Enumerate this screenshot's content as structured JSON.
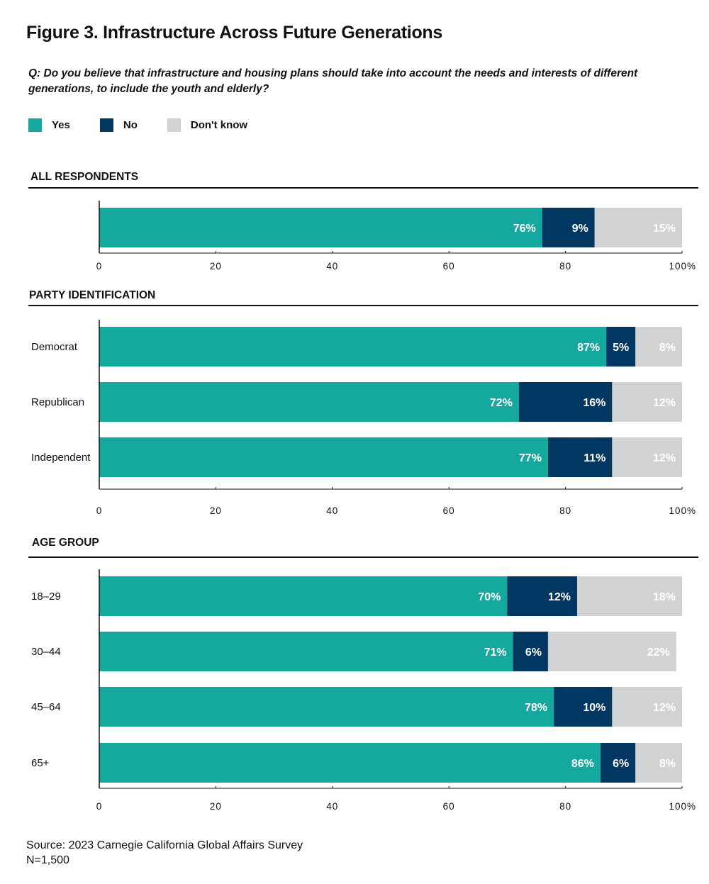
{
  "title": "Figure 3. Infrastructure Across Future Generations",
  "question": "Q: Do you believe that infrastructure and housing plans should take into account the needs and interests of different generations, to include the youth and elderly?",
  "legend": [
    {
      "label": "Yes",
      "color": "#14a89e"
    },
    {
      "label": "No",
      "color": "#023761"
    },
    {
      "label": "Don't know",
      "color": "#d1d2d4"
    }
  ],
  "source": "Source: 2023 Carnegie California Global Affairs Survey",
  "sample": "N=1,500",
  "chart_data": [
    {
      "type": "bar",
      "orientation": "horizontal",
      "stacked": true,
      "title": "ALL RESPONDENTS",
      "categories": [
        ""
      ],
      "series": [
        {
          "name": "Yes",
          "values": [
            76
          ],
          "labels": [
            "76%"
          ]
        },
        {
          "name": "No",
          "values": [
            9
          ],
          "labels": [
            "9%"
          ]
        },
        {
          "name": "Don't know",
          "values": [
            15
          ],
          "labels": [
            "15%"
          ]
        }
      ],
      "xlim": [
        0,
        100
      ],
      "xticks": [
        "0",
        "20",
        "40",
        "60",
        "80",
        "100%"
      ]
    },
    {
      "type": "bar",
      "orientation": "horizontal",
      "stacked": true,
      "title": "PARTY IDENTIFICATION",
      "categories": [
        "Democrat",
        "Republican",
        "Independent"
      ],
      "series": [
        {
          "name": "Yes",
          "values": [
            87,
            72,
            77
          ],
          "labels": [
            "87%",
            "72%",
            "77%"
          ]
        },
        {
          "name": "No",
          "values": [
            5,
            16,
            11
          ],
          "labels": [
            "5%",
            "16%",
            "11%"
          ]
        },
        {
          "name": "Don't know",
          "values": [
            8,
            12,
            12
          ],
          "labels": [
            "8%",
            "12%",
            "12%"
          ]
        }
      ],
      "xlim": [
        0,
        100
      ],
      "xticks": [
        "0",
        "20",
        "40",
        "60",
        "80",
        "100%"
      ]
    },
    {
      "type": "bar",
      "orientation": "horizontal",
      "stacked": true,
      "title": "AGE GROUP",
      "categories": [
        "18–29",
        "30–44",
        "45–64",
        "65+"
      ],
      "series": [
        {
          "name": "Yes",
          "values": [
            70,
            71,
            78,
            86
          ],
          "labels": [
            "70%",
            "71%",
            "78%",
            "86%"
          ]
        },
        {
          "name": "No",
          "values": [
            12,
            6,
            10,
            6
          ],
          "labels": [
            "12%",
            "6%",
            "10%",
            "6%"
          ]
        },
        {
          "name": "Don't know",
          "values": [
            18,
            22,
            12,
            8
          ],
          "labels": [
            "18%",
            "22%",
            "12%",
            "8%"
          ]
        }
      ],
      "xlim": [
        0,
        100
      ],
      "xticks": [
        "0",
        "20",
        "40",
        "60",
        "80",
        "100%"
      ]
    }
  ]
}
